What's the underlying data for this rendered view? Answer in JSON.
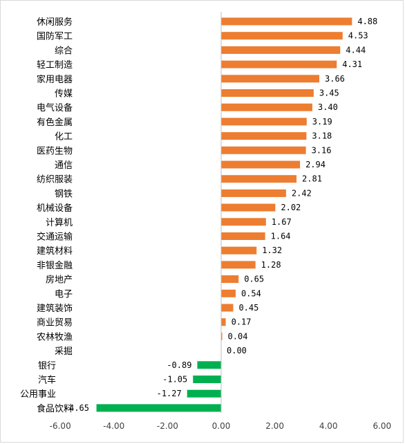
{
  "chart_data": {
    "type": "bar",
    "orientation": "horizontal",
    "title": "",
    "xlabel": "",
    "ylabel": "",
    "xlim": [
      -6,
      6
    ],
    "x_ticks": [
      -6,
      -4,
      -2,
      0,
      2,
      4,
      6
    ],
    "x_tick_labels": [
      "-6.00",
      "-4.00",
      "-2.00",
      "0.00",
      "2.00",
      "4.00",
      "6.00"
    ],
    "grid": false,
    "legend": "none",
    "positive_color": "#ed7d31",
    "negative_color": "#00b050",
    "categories": [
      "休闲服务",
      "国防军工",
      "综合",
      "轻工制造",
      "家用电器",
      "传媒",
      "电气设备",
      "有色金属",
      "化工",
      "医药生物",
      "通信",
      "纺织服装",
      "钢铁",
      "机械设备",
      "计算机",
      "交通运输",
      "建筑材料",
      "非银金融",
      "房地产",
      "电子",
      "建筑装饰",
      "商业贸易",
      "农林牧渔",
      "采掘",
      "银行",
      "汽车",
      "公用事业",
      "食品饮料"
    ],
    "values": [
      4.88,
      4.53,
      4.44,
      4.31,
      3.66,
      3.45,
      3.4,
      3.19,
      3.18,
      3.16,
      2.94,
      2.81,
      2.42,
      2.02,
      1.67,
      1.64,
      1.32,
      1.28,
      0.65,
      0.54,
      0.45,
      0.17,
      0.04,
      0.0,
      -0.89,
      -1.05,
      -1.27,
      -4.65
    ],
    "value_labels": [
      "4.88",
      "4.53",
      "4.44",
      "4.31",
      "3.66",
      "3.45",
      "3.40",
      "3.19",
      "3.18",
      "3.16",
      "2.94",
      "2.81",
      "2.42",
      "2.02",
      "1.67",
      "1.64",
      "1.32",
      "1.28",
      "0.65",
      "0.54",
      "0.45",
      "0.17",
      "0.04",
      "0.00",
      "-0.89",
      "-1.05",
      "-1.27",
      "-4.65"
    ]
  }
}
